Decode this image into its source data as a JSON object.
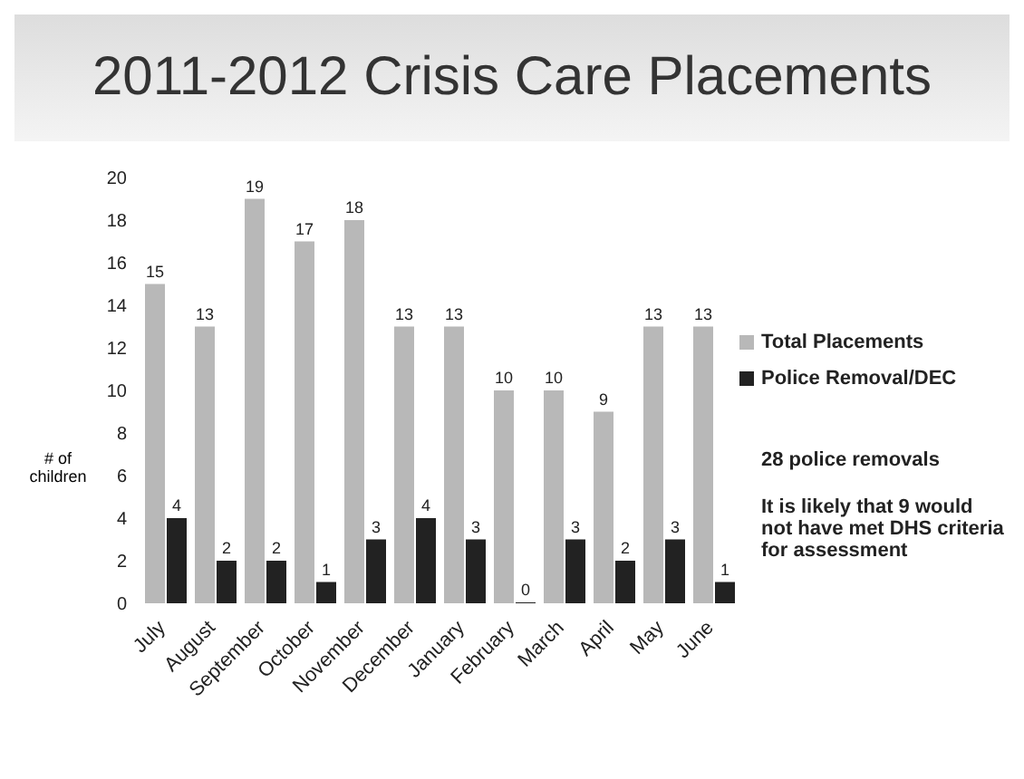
{
  "chart_data": {
    "type": "bar",
    "title": "2011-2012 Crisis Care Placements",
    "ylabel": "# of children",
    "categories": [
      "July",
      "August",
      "September",
      "October",
      "November",
      "December",
      "January",
      "February",
      "March",
      "April",
      "May",
      "June"
    ],
    "series": [
      {
        "name": "Total Placements",
        "color": "#b8b8b8",
        "values": [
          15,
          13,
          19,
          17,
          18,
          13,
          13,
          10,
          10,
          9,
          13,
          13
        ]
      },
      {
        "name": "Police Removal/DEC",
        "color": "#222222",
        "values": [
          4,
          2,
          2,
          1,
          3,
          4,
          3,
          0,
          3,
          2,
          3,
          1
        ]
      }
    ],
    "ylim": [
      0,
      20
    ],
    "yticks": [
      0,
      2,
      4,
      6,
      8,
      10,
      12,
      14,
      16,
      18,
      20
    ],
    "data_labels": true,
    "grid": false,
    "legend": "right",
    "annotations": [
      "28 police removals",
      "It is likely that 9 would not have met DHS criteria for assessment"
    ]
  }
}
